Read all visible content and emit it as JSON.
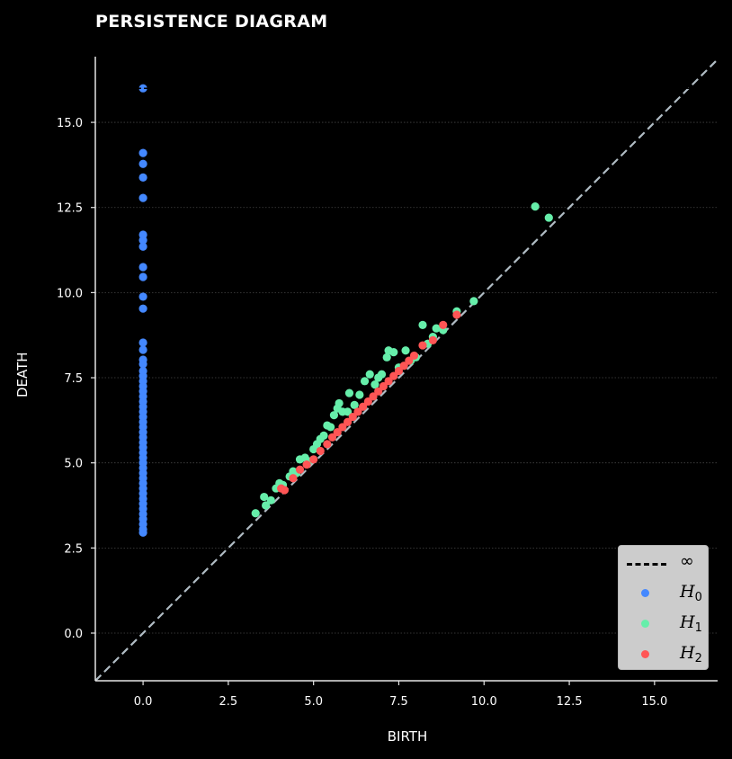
{
  "chart_data": {
    "type": "scatter",
    "title": "PERSISTENCE DIAGRAM",
    "xlabel": "BIRTH",
    "ylabel": "DEATH",
    "xlim": [
      -1.4,
      16.85
    ],
    "ylim": [
      -1.4,
      16.93
    ],
    "xticks": [
      "0.0",
      "2.5",
      "5.0",
      "7.5",
      "10.0",
      "12.5",
      "15.0"
    ],
    "yticks": [
      "0.0",
      "2.5",
      "5.0",
      "7.5",
      "10.0",
      "12.5",
      "15.0"
    ],
    "grid": "horizontal dotted",
    "legend_position": "lower right",
    "diagonal": {
      "color": "#b0bcc4",
      "style": "dashed"
    },
    "infinity_line": {
      "y": 16.0,
      "color": "#000000",
      "style": "dashed"
    },
    "series": [
      {
        "name": "H0",
        "color": "#4488ff",
        "points": [
          [
            0,
            16.0
          ],
          [
            0,
            14.1
          ],
          [
            0,
            13.78
          ],
          [
            0,
            13.38
          ],
          [
            0,
            12.78
          ],
          [
            0,
            11.7
          ],
          [
            0,
            11.54
          ],
          [
            0,
            11.35
          ],
          [
            0,
            10.75
          ],
          [
            0,
            10.46
          ],
          [
            0,
            9.88
          ],
          [
            0,
            9.53
          ],
          [
            0,
            8.53
          ],
          [
            0,
            8.32
          ],
          [
            0,
            8.03
          ],
          [
            0,
            7.9
          ],
          [
            0,
            7.7
          ],
          [
            0,
            7.55
          ],
          [
            0,
            7.4
          ],
          [
            0,
            7.25
          ],
          [
            0,
            7.1
          ],
          [
            0,
            6.95
          ],
          [
            0,
            6.8
          ],
          [
            0,
            6.65
          ],
          [
            0,
            6.5
          ],
          [
            0,
            6.35
          ],
          [
            0,
            6.2
          ],
          [
            0,
            6.05
          ],
          [
            0,
            5.9
          ],
          [
            0,
            5.75
          ],
          [
            0,
            5.6
          ],
          [
            0,
            5.45
          ],
          [
            0,
            5.3
          ],
          [
            0,
            5.15
          ],
          [
            0,
            5.0
          ],
          [
            0,
            4.85
          ],
          [
            0,
            4.7
          ],
          [
            0,
            4.55
          ],
          [
            0,
            4.4
          ],
          [
            0,
            4.25
          ],
          [
            0,
            4.1
          ],
          [
            0,
            3.95
          ],
          [
            0,
            3.8
          ],
          [
            0,
            3.65
          ],
          [
            0,
            3.5
          ],
          [
            0,
            3.35
          ],
          [
            0,
            3.2
          ],
          [
            0,
            3.05
          ],
          [
            0,
            2.95
          ]
        ]
      },
      {
        "name": "H1",
        "color": "#66eeaa",
        "points": [
          [
            3.3,
            3.52
          ],
          [
            3.55,
            4.0
          ],
          [
            3.6,
            3.75
          ],
          [
            3.75,
            3.9
          ],
          [
            3.9,
            4.25
          ],
          [
            4.0,
            4.4
          ],
          [
            4.1,
            4.35
          ],
          [
            4.3,
            4.6
          ],
          [
            4.4,
            4.75
          ],
          [
            4.5,
            4.7
          ],
          [
            4.6,
            5.1
          ],
          [
            4.75,
            5.15
          ],
          [
            4.85,
            5.05
          ],
          [
            5.0,
            5.4
          ],
          [
            5.1,
            5.55
          ],
          [
            5.2,
            5.7
          ],
          [
            5.3,
            5.8
          ],
          [
            5.4,
            6.1
          ],
          [
            5.5,
            6.05
          ],
          [
            5.6,
            6.4
          ],
          [
            5.7,
            6.6
          ],
          [
            5.75,
            6.75
          ],
          [
            5.85,
            6.5
          ],
          [
            6.0,
            6.5
          ],
          [
            6.05,
            7.05
          ],
          [
            6.2,
            6.7
          ],
          [
            6.35,
            7.0
          ],
          [
            6.5,
            7.4
          ],
          [
            6.65,
            7.6
          ],
          [
            6.8,
            7.3
          ],
          [
            6.9,
            7.5
          ],
          [
            7.0,
            7.6
          ],
          [
            7.15,
            8.1
          ],
          [
            7.2,
            8.3
          ],
          [
            7.35,
            8.25
          ],
          [
            7.5,
            7.8
          ],
          [
            7.7,
            8.3
          ],
          [
            7.85,
            8.0
          ],
          [
            8.0,
            8.1
          ],
          [
            8.2,
            9.05
          ],
          [
            8.35,
            8.5
          ],
          [
            8.5,
            8.7
          ],
          [
            8.6,
            8.95
          ],
          [
            8.8,
            8.9
          ],
          [
            9.2,
            9.45
          ],
          [
            9.7,
            9.75
          ],
          [
            11.5,
            12.53
          ],
          [
            11.9,
            12.2
          ]
        ]
      },
      {
        "name": "H2",
        "color": "#ff5555",
        "points": [
          [
            4.05,
            4.25
          ],
          [
            4.15,
            4.2
          ],
          [
            4.4,
            4.55
          ],
          [
            4.6,
            4.8
          ],
          [
            4.8,
            4.95
          ],
          [
            5.0,
            5.1
          ],
          [
            5.2,
            5.35
          ],
          [
            5.4,
            5.55
          ],
          [
            5.55,
            5.75
          ],
          [
            5.7,
            5.9
          ],
          [
            5.85,
            6.05
          ],
          [
            6.0,
            6.2
          ],
          [
            6.15,
            6.35
          ],
          [
            6.3,
            6.5
          ],
          [
            6.45,
            6.65
          ],
          [
            6.6,
            6.8
          ],
          [
            6.75,
            6.95
          ],
          [
            6.9,
            7.1
          ],
          [
            7.05,
            7.25
          ],
          [
            7.2,
            7.4
          ],
          [
            7.35,
            7.55
          ],
          [
            7.5,
            7.7
          ],
          [
            7.65,
            7.85
          ],
          [
            7.8,
            8.0
          ],
          [
            7.95,
            8.15
          ],
          [
            8.2,
            8.45
          ],
          [
            8.5,
            8.6
          ],
          [
            8.8,
            9.05
          ],
          [
            9.2,
            9.35
          ]
        ]
      }
    ]
  },
  "legend": {
    "items": [
      {
        "label": "∞",
        "kind": "line"
      },
      {
        "label": "H",
        "sub": "0",
        "color": "#4488ff"
      },
      {
        "label": "H",
        "sub": "1",
        "color": "#66eeaa"
      },
      {
        "label": "H",
        "sub": "2",
        "color": "#ff5555"
      }
    ]
  }
}
